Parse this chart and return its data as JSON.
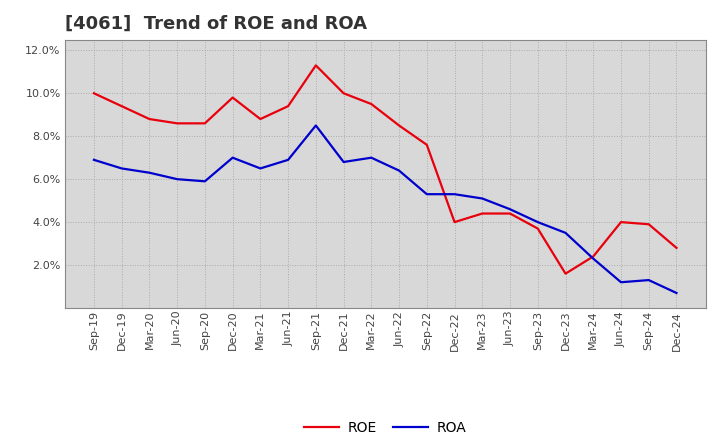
{
  "title": "[4061]  Trend of ROE and ROA",
  "x_labels": [
    "Sep-19",
    "Dec-19",
    "Mar-20",
    "Jun-20",
    "Sep-20",
    "Dec-20",
    "Mar-21",
    "Jun-21",
    "Sep-21",
    "Dec-21",
    "Mar-22",
    "Jun-22",
    "Sep-22",
    "Dec-22",
    "Mar-23",
    "Jun-23",
    "Sep-23",
    "Dec-23",
    "Mar-24",
    "Jun-24",
    "Sep-24",
    "Dec-24"
  ],
  "roe": [
    10.0,
    9.4,
    8.8,
    8.6,
    8.6,
    9.8,
    8.8,
    9.4,
    11.3,
    10.0,
    9.5,
    8.5,
    7.6,
    4.0,
    4.4,
    4.4,
    3.7,
    1.6,
    2.4,
    4.0,
    3.9,
    2.8
  ],
  "roa": [
    6.9,
    6.5,
    6.3,
    6.0,
    5.9,
    7.0,
    6.5,
    6.9,
    8.5,
    6.8,
    7.0,
    6.4,
    5.3,
    5.3,
    5.1,
    4.6,
    4.0,
    3.5,
    2.3,
    1.2,
    1.3,
    0.7
  ],
  "roe_color": "#e8000d",
  "roa_color": "#0000cc",
  "ylim": [
    0,
    12.5
  ],
  "yticks": [
    2.0,
    4.0,
    6.0,
    8.0,
    10.0,
    12.0
  ],
  "background_color": "#ffffff",
  "plot_bg_color": "#d8d8d8",
  "grid_color": "#aaaaaa",
  "title_fontsize": 13,
  "title_color": "#333333",
  "legend_labels": [
    "ROE",
    "ROA"
  ],
  "line_width": 1.6,
  "tick_label_color": "#444444",
  "tick_label_fontsize": 8
}
